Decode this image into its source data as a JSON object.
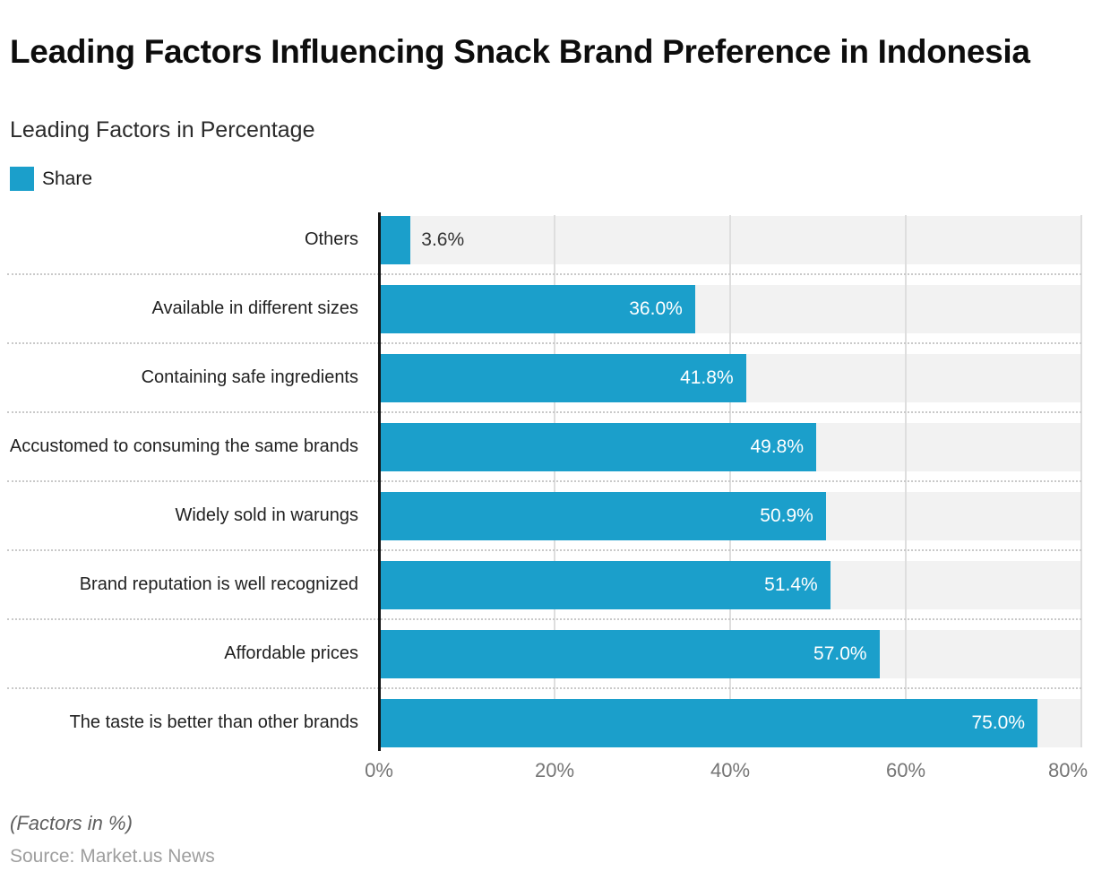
{
  "header": {
    "title": "Leading Factors Influencing Snack Brand Preference in Indonesia",
    "subtitle": "Leading Factors in Percentage"
  },
  "legend": {
    "label": "Share",
    "swatch_color": "#1B9FCB"
  },
  "chart_data": {
    "type": "bar",
    "orientation": "horizontal",
    "series_name": "Share",
    "categories": [
      "Others",
      "Available in different sizes",
      "Containing safe ingredients",
      "Accustomed to consuming the same brands",
      "Widely sold in warungs",
      "Brand reputation is well recognized",
      "Affordable prices",
      "The taste is better than other brands"
    ],
    "values": [
      3.6,
      36.0,
      41.8,
      49.8,
      50.9,
      51.4,
      57.0,
      75.0
    ],
    "value_labels": [
      "3.6%",
      "36.0%",
      "41.8%",
      "49.8%",
      "50.9%",
      "51.4%",
      "57.0%",
      "75.0%"
    ],
    "xlim": [
      0,
      80
    ],
    "x_ticks": [
      "0%",
      "20%",
      "40%",
      "60%",
      "80%"
    ],
    "grid": true,
    "legend_position": "top-left",
    "bar_color": "#1B9FCB",
    "track_color": "#f2f2f2",
    "axis_color": "#141414",
    "gridline_color": "#dedede",
    "value_label_inside_color": "#ffffff",
    "value_label_outside_color": "#333333"
  },
  "footer": {
    "note": "(Factors in %)",
    "source": "Source: Market.us News"
  }
}
